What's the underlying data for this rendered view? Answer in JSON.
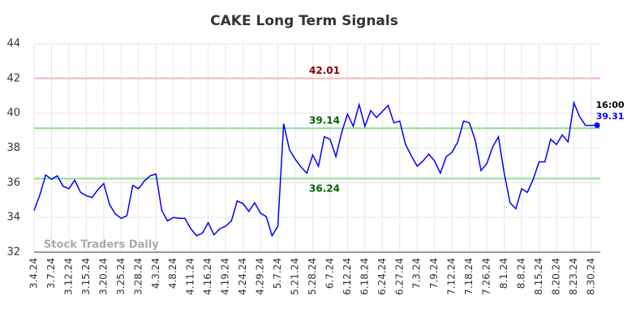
{
  "chart_data": {
    "type": "line",
    "title": "CAKE Long Term Signals",
    "categories": [
      "3.4.24",
      null,
      null,
      "3.7.24",
      null,
      null,
      "3.12.24",
      null,
      null,
      "3.15.24",
      null,
      null,
      "3.20.24",
      null,
      null,
      "3.25.24",
      null,
      null,
      "3.28.24",
      null,
      null,
      "4.3.24",
      null,
      null,
      "4.8.24",
      null,
      null,
      "4.11.24",
      null,
      null,
      "4.16.24",
      null,
      null,
      "4.19.24",
      null,
      null,
      "4.24.24",
      null,
      null,
      "4.29.24",
      null,
      null,
      "5.7.24",
      null,
      null,
      "5.21.24",
      null,
      null,
      "5.28.24",
      null,
      null,
      "6.7.24",
      null,
      null,
      "6.12.24",
      null,
      null,
      "6.18.24",
      null,
      null,
      "6.24.24",
      null,
      null,
      "6.27.24",
      null,
      null,
      "7.3.24",
      null,
      null,
      "7.9.24",
      null,
      null,
      "7.12.24",
      null,
      null,
      "7.18.24",
      null,
      null,
      "7.26.24",
      null,
      null,
      "8.1.24",
      null,
      null,
      "8.8.24",
      null,
      null,
      "8.15.24",
      null,
      null,
      "8.20.24",
      null,
      null,
      "8.23.24",
      null,
      null,
      "8.30.24",
      null
    ],
    "values": [
      34.4,
      35.3,
      36.45,
      36.2,
      36.4,
      35.8,
      35.65,
      36.15,
      35.45,
      35.25,
      35.15,
      35.6,
      35.95,
      34.75,
      34.2,
      33.95,
      34.1,
      35.85,
      35.65,
      36.1,
      36.4,
      36.5,
      34.4,
      33.8,
      34.0,
      33.95,
      33.95,
      33.35,
      32.95,
      33.1,
      33.7,
      33.0,
      33.35,
      33.5,
      33.8,
      34.95,
      34.8,
      34.35,
      34.85,
      34.25,
      34.05,
      32.95,
      33.5,
      39.4,
      37.9,
      37.35,
      36.9,
      36.55,
      37.6,
      36.95,
      38.65,
      38.5,
      37.5,
      38.9,
      39.95,
      39.25,
      40.5,
      39.25,
      40.15,
      39.75,
      40.1,
      40.45,
      39.45,
      39.55,
      38.2,
      37.55,
      36.95,
      37.25,
      37.65,
      37.25,
      36.55,
      37.5,
      37.75,
      38.35,
      39.55,
      39.45,
      38.45,
      36.7,
      37.1,
      38.05,
      38.65,
      36.55,
      34.85,
      34.5,
      35.65,
      35.45,
      36.2,
      37.2,
      37.2,
      38.5,
      38.2,
      38.75,
      38.35,
      40.6,
      39.8,
      39.3,
      39.3,
      39.31
    ],
    "color": "#0000ff",
    "ylim": [
      32,
      44
    ],
    "yticks": [
      32,
      34,
      36,
      38,
      40,
      42,
      44
    ],
    "grid": true,
    "hlines": [
      {
        "value": 42.01,
        "color": "#f4b8b8",
        "label_color": "#8b0000"
      },
      {
        "value": 39.14,
        "color": "#90e090",
        "label_color": "#006400"
      },
      {
        "value": 36.24,
        "color": "#90e090",
        "label_color": "#006400"
      }
    ],
    "last_time": "16:00",
    "watermark": "Stock Traders Daily"
  }
}
